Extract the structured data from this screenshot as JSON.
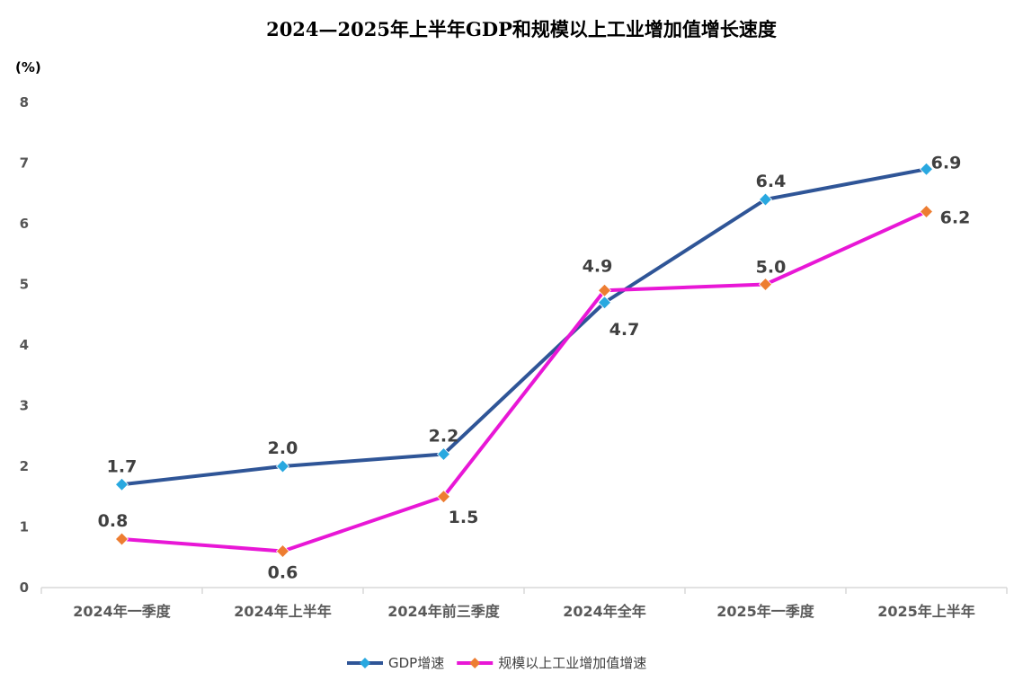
{
  "chart_data": {
    "type": "line",
    "title": "2024—2025年上半年GDP和规模以上工业增加值增长速度",
    "unit": "(%)",
    "categories": [
      "2024年一季度",
      "2024年上半年",
      "2024年前三季度",
      "2024年全年",
      "2025年一季度",
      "2025年上半年"
    ],
    "ylim": [
      0,
      8
    ],
    "yticks": [
      "0",
      "1",
      "2",
      "3",
      "4",
      "5",
      "6",
      "7",
      "8"
    ],
    "grid": false,
    "legend_position": "bottom",
    "series": [
      {
        "name": "GDP增速",
        "values": [
          1.7,
          2.0,
          2.2,
          4.7,
          6.4,
          6.9
        ],
        "labels": [
          "1.7",
          "2.0",
          "2.2",
          "4.7",
          "6.4",
          "6.9"
        ],
        "line_color": "#2F5597",
        "marker_color": "#29A8E0",
        "marker": "diamond"
      },
      {
        "name": "规模以上工业增加值增速",
        "values": [
          0.8,
          0.6,
          1.5,
          4.9,
          5.0,
          6.2
        ],
        "labels": [
          "0.8",
          "0.6",
          "1.5",
          "4.9",
          "5.0",
          "6.2"
        ],
        "line_color": "#E817D6",
        "marker_color": "#ED7D31",
        "marker": "diamond"
      }
    ]
  }
}
